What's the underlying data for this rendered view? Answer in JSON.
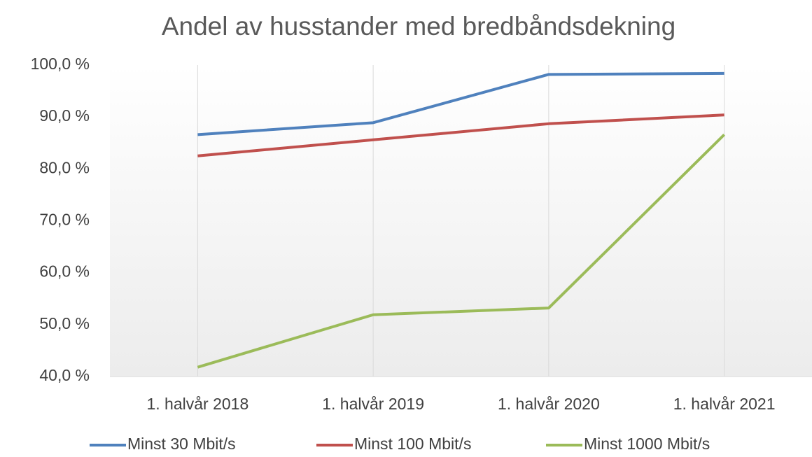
{
  "chart_data": {
    "type": "line",
    "title": "Andel av husstander med bredbåndsdekning",
    "categories": [
      "1. halvår 2018",
      "1. halvår 2019",
      "1. halvår 2020",
      "1. halvår 2021"
    ],
    "series": [
      {
        "name": "Minst 30 Mbit/s",
        "color": "#4f81bd",
        "values": [
          86.6,
          88.9,
          98.2,
          98.4
        ]
      },
      {
        "name": "Minst 100 Mbit/s",
        "color": "#c0504d",
        "values": [
          82.5,
          85.6,
          88.7,
          90.4
        ]
      },
      {
        "name": "Minst 1000 Mbit/s",
        "color": "#9bbb59",
        "values": [
          41.8,
          51.9,
          53.2,
          86.6
        ]
      }
    ],
    "ylim": [
      40,
      100
    ],
    "yticks": [
      {
        "value": 40,
        "label": "40,0 %"
      },
      {
        "value": 50,
        "label": "50,0 %"
      },
      {
        "value": 60,
        "label": "60,0 %"
      },
      {
        "value": 70,
        "label": "70,0 %"
      },
      {
        "value": 80,
        "label": "80,0 %"
      },
      {
        "value": 90,
        "label": "90,0 %"
      },
      {
        "value": 100,
        "label": "100,0 %"
      }
    ],
    "legend": "bottom"
  }
}
